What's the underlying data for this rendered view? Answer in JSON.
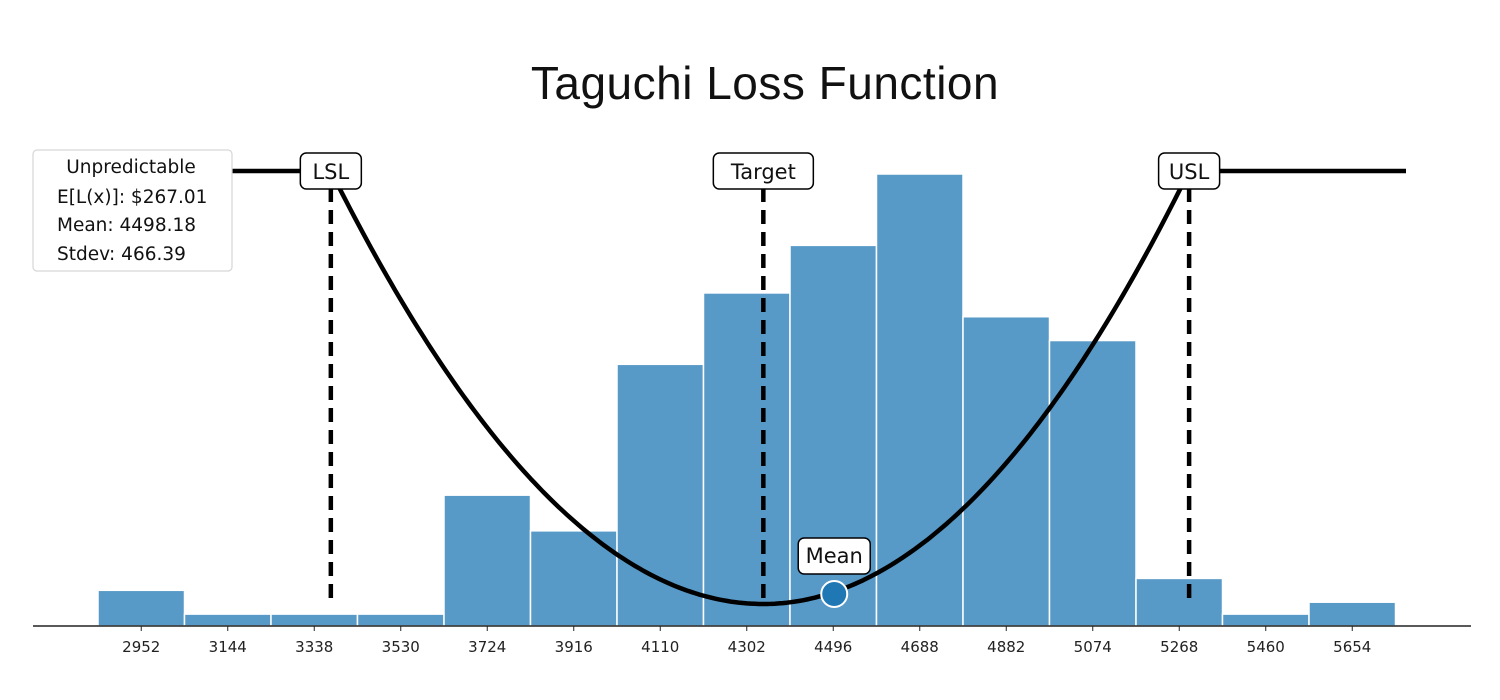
{
  "chart_data": {
    "type": "bar",
    "title": "Taguchi Loss Function",
    "xlabel": "",
    "ylabel": "",
    "categories": [
      "2952",
      "3144",
      "3338",
      "3530",
      "3724",
      "3916",
      "4110",
      "4302",
      "4496",
      "4688",
      "4882",
      "5074",
      "5268",
      "5460",
      "5654"
    ],
    "values": [
      3,
      1,
      1,
      1,
      11,
      8,
      22,
      28,
      32,
      38,
      26,
      24,
      4,
      1,
      2
    ],
    "ylim": [
      0,
      38
    ],
    "bar_color": "#5799c7",
    "grid": false,
    "spec_limits": [
      {
        "label": "LSL",
        "x": 3375
      },
      {
        "label": "Target",
        "x": 4340
      },
      {
        "label": "USL",
        "x": 5290
      }
    ],
    "mean_marker": {
      "label": "Mean",
      "x": 4498.18,
      "color": "#1f77b4"
    },
    "loss_curve": {
      "target": 4340,
      "lsl": 3375,
      "usl": 5290,
      "color": "#000000"
    },
    "legend": {
      "placement": "top-left",
      "title": "Unpredictable",
      "lines": [
        "E[L(x)]: $267.01",
        "Mean: 4498.18",
        "Stdev: 466.39"
      ]
    }
  }
}
